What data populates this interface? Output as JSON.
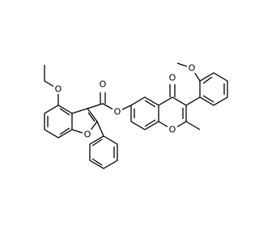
{
  "atoms": [
    {
      "label": "O"
    },
    {
      "label": "O"
    },
    {
      "label": "O"
    },
    {
      "label": "O"
    },
    {
      "label": "O"
    },
    {
      "label": "O"
    },
    {
      "label": "O"
    }
  ]
}
